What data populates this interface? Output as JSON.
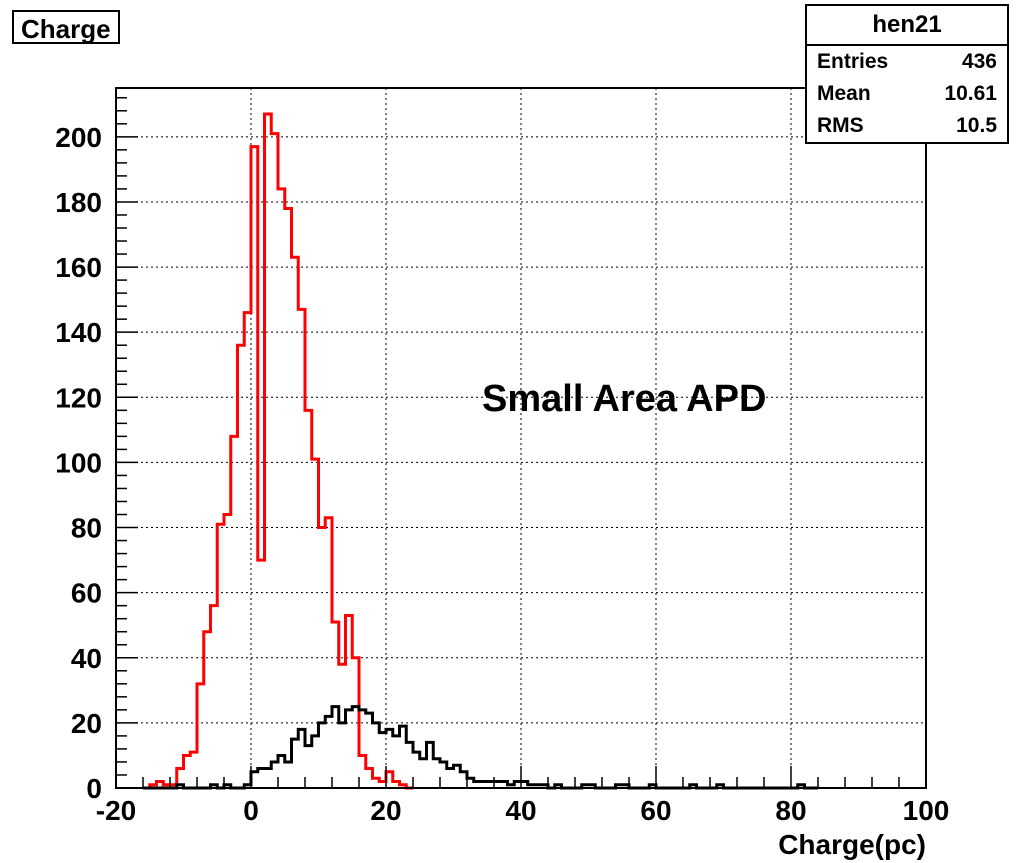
{
  "title": "Charge",
  "annotation": "Small Area APD",
  "stats": {
    "name": "hen21",
    "rows": [
      {
        "label": "Entries",
        "value": "436"
      },
      {
        "label": "Mean",
        "value": "10.61"
      },
      {
        "label": "RMS",
        "value": "10.5"
      }
    ]
  },
  "chart_data": {
    "type": "histogram",
    "title": "Charge",
    "xlabel": "Charge(pc)",
    "ylabel": "",
    "xlim": [
      -20,
      100
    ],
    "ylim": [
      0,
      215
    ],
    "xticks": [
      -20,
      0,
      20,
      40,
      60,
      80,
      100
    ],
    "yticks": [
      0,
      20,
      40,
      60,
      80,
      100,
      120,
      140,
      160,
      180,
      200
    ],
    "grid": true,
    "bin_width": 1,
    "series": [
      {
        "color": "#ff0000",
        "bin_start": -16,
        "values": [
          0,
          1,
          2,
          1,
          1,
          6,
          10,
          11,
          32,
          48,
          56,
          81,
          84,
          108,
          136,
          146,
          197,
          70,
          207,
          201,
          184,
          178,
          163,
          147,
          116,
          101,
          80,
          83,
          51,
          38,
          53,
          40,
          10,
          6,
          3,
          2,
          5,
          2,
          1,
          0
        ]
      },
      {
        "color": "#000000",
        "bin_start": -16,
        "values": [
          0,
          0,
          0,
          0,
          0,
          1,
          0,
          0,
          0,
          0,
          1,
          0,
          1,
          0,
          0,
          1,
          5,
          6,
          6,
          8,
          10,
          8,
          15,
          18,
          13,
          16,
          20,
          22,
          25,
          20,
          24,
          25,
          24,
          23,
          20,
          17,
          18,
          16,
          19,
          14,
          11,
          9,
          14,
          9,
          8,
          6,
          7,
          5,
          3,
          2,
          2,
          2,
          2,
          2,
          1,
          2,
          2,
          1,
          1,
          1,
          0,
          1,
          0,
          0,
          0,
          1,
          1,
          0,
          0,
          0,
          1,
          1,
          0,
          0,
          0,
          1,
          0,
          0,
          0,
          0,
          0,
          1,
          0,
          0,
          0,
          1,
          0,
          0,
          0,
          0,
          0,
          0,
          0,
          0,
          0,
          0,
          0,
          1,
          0,
          0
        ]
      }
    ]
  }
}
